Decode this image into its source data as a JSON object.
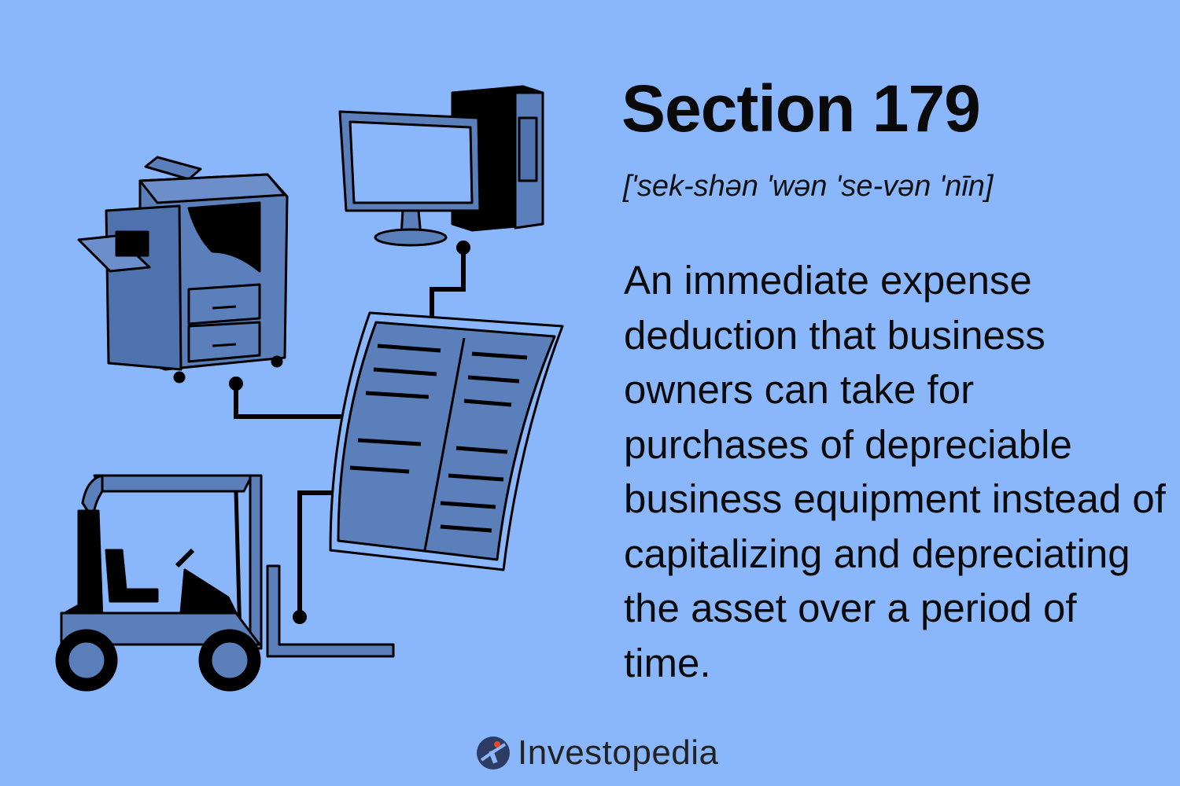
{
  "header": {
    "title": "Section 179",
    "pronunciation": "['sek-shən 'wən 'se-vən 'nīn]"
  },
  "definition": {
    "text": "An immediate expense deduction that business owners can take for purchases of depreciable business equipment instead of capitalizing and depreciating the asset over a period of time."
  },
  "brand": {
    "name": "Investopedia",
    "logo_icon": "investopedia-logo-icon"
  },
  "illustration": {
    "icons": [
      "copier-icon",
      "computer-icon",
      "spreadsheet-document-icon",
      "forklift-icon"
    ]
  },
  "colors": {
    "background": "#8ab7fb",
    "illustration_fill": "#5b7fba",
    "outline": "#000000",
    "logo_accent": "#e8452b",
    "logo_blue": "#2c3c64"
  }
}
